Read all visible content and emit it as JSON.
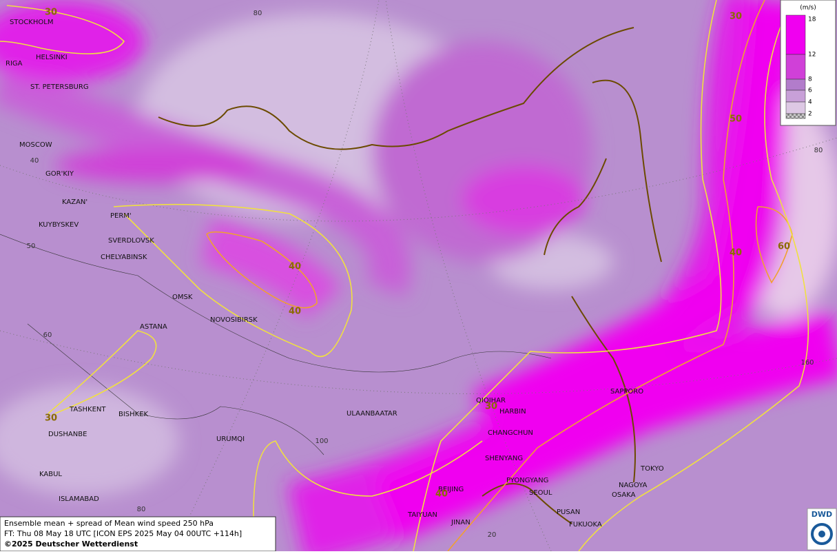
{
  "map": {
    "title_lines": [
      "Ensemble mean + spread of Mean wind speed 250 hPa",
      "FT: Thu 08 May 18 UTC [ICON EPS 2025 May 04 00UTC +114h]",
      "©2025 Deutscher Wetterdienst"
    ],
    "logo": "DWD",
    "legend": {
      "unit": "(m/s)",
      "levels": [
        18,
        12,
        8,
        6,
        4,
        2
      ],
      "colors": [
        "#f000f0",
        "#d040d8",
        "#b27ccb",
        "#c8a0d8",
        "#ddc8e4",
        "#a0a0a0"
      ]
    },
    "cities": [
      "STOCKHOLM",
      "HELSINKI",
      "RIGA",
      "ST. PETERSBURG",
      "MOSCOW",
      "GOR'KIY",
      "KAZAN'",
      "KUYBYSKEV",
      "PERM'",
      "SVERDLOVSK",
      "CHELYABINSK",
      "OMSK",
      "NOVOSIBIRSK",
      "ASTANA",
      "TASHKENT",
      "BISHKEK",
      "DUSHANBE",
      "KABUL",
      "ISLAMABAD",
      "URUMQI",
      "ULAANBAATAR",
      "QIQIHAR",
      "HARBIN",
      "CHANGCHUN",
      "SHENYANG",
      "PYONGYANG",
      "SEOUL",
      "BEIJING",
      "TAIYUAN",
      "JINAN",
      "PUSAN",
      "FUKUOKA",
      "SAPPORO",
      "TOKYO",
      "NAGOYA",
      "OSAKA"
    ],
    "contour_labels": [
      30,
      30,
      50,
      40,
      40,
      40,
      60,
      30,
      30,
      40
    ],
    "graticule_labels": [
      80,
      40,
      50,
      60,
      100,
      80,
      80,
      160,
      20
    ]
  }
}
